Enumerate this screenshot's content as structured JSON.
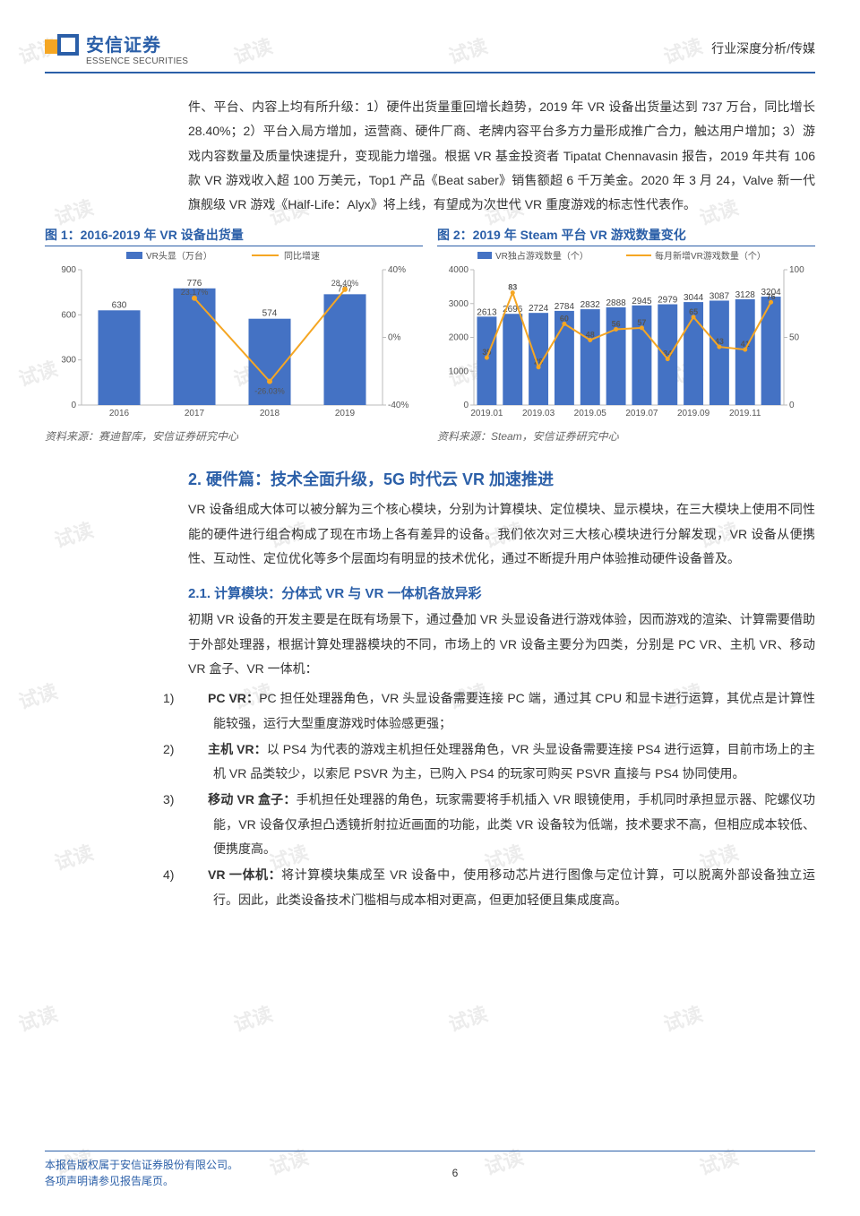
{
  "header": {
    "logo_cn": "安信证券",
    "logo_en": "ESSENCE SECURITIES",
    "doc_meta": "行业深度分析/传媒"
  },
  "intro_paragraph": "件、平台、内容上均有所升级：1）硬件出货量重回增长趋势，2019 年 VR 设备出货量达到 737 万台，同比增长 28.40%；2）平台入局方增加，运营商、硬件厂商、老牌内容平台多方力量形成推广合力，触达用户增加；3）游戏内容数量及质量快速提升，变现能力增强。根据 VR 基金投资者 Tipatat Chennavasin 报告，2019 年共有 106 款 VR 游戏收入超 100 万美元，Top1 产品《Beat saber》销售额超 6 千万美金。2020 年 3 月 24，Valve 新一代旗舰级 VR 游戏《Half-Life：Alyx》将上线，有望成为次世代 VR 重度游戏的标志性代表作。",
  "chart1": {
    "title": "图 1：2016-2019 年 VR 设备出货量",
    "legend_bar": "VR头显（万台）",
    "legend_line": "同比增速",
    "years": [
      "2016",
      "2017",
      "2018",
      "2019"
    ],
    "bars": [
      630,
      776,
      574,
      737
    ],
    "growth_pct": [
      null,
      23.17,
      -26.03,
      28.4
    ],
    "growth_labels": [
      "",
      "23.17%",
      "-26.03%",
      "28.40%"
    ],
    "bar_color": "#4472c4",
    "line_color": "#f5a623",
    "y_left": {
      "min": 0,
      "max": 900,
      "ticks": [
        0,
        300,
        600,
        900
      ]
    },
    "y_right": {
      "min": -40,
      "max": 40,
      "ticks": [
        -40,
        0,
        40
      ],
      "tick_labels": [
        "-40%",
        "0%",
        "40%"
      ]
    },
    "source": "资料来源：赛迪智库，安信证券研究中心"
  },
  "chart2": {
    "title": "图 2：2019 年 Steam 平台 VR 游戏数量变化",
    "legend_bar": "VR独占游戏数量（个）",
    "legend_line": "每月新增VR游戏数量（个）",
    "months": [
      "2019.01",
      "2019.02",
      "2019.03",
      "2019.04",
      "2019.05",
      "2019.06",
      "2019.07",
      "2019.08",
      "2019.09",
      "2019.10",
      "2019.11",
      "2019.12"
    ],
    "month_ticks": [
      "2019.01",
      "2019.03",
      "2019.05",
      "2019.07",
      "2019.09",
      "2019.11"
    ],
    "bars": [
      2613,
      2696,
      2724,
      2784,
      2832,
      2888,
      2945,
      2979,
      3044,
      3087,
      3128,
      3204
    ],
    "line": [
      35,
      83,
      28,
      60,
      48,
      56,
      57,
      34,
      65,
      43,
      41,
      76
    ],
    "bar_color": "#4472c4",
    "line_color": "#f5a623",
    "y_left": {
      "min": 0,
      "max": 4000,
      "ticks": [
        0,
        1000,
        2000,
        3000,
        4000
      ]
    },
    "y_right": {
      "min": 0,
      "max": 100,
      "ticks": [
        0,
        50,
        100
      ]
    },
    "source": "资料来源：Steam，安信证券研究中心"
  },
  "section2_title": "2. 硬件篇：技术全面升级，5G 时代云 VR 加速推进",
  "section2_para": "VR 设备组成大体可以被分解为三个核心模块，分别为计算模块、定位模块、显示模块，在三大模块上使用不同性能的硬件进行组合构成了现在市场上各有差异的设备。我们依次对三大核心模块进行分解发现，VR 设备从便携性、互动性、定位优化等多个层面均有明显的技术优化，通过不断提升用户体验推动硬件设备普及。",
  "section21_title": "2.1. 计算模块：分体式 VR 与 VR 一体机各放异彩",
  "section21_para": "初期 VR 设备的开发主要是在既有场景下，通过叠加 VR 头显设备进行游戏体验，因而游戏的渲染、计算需要借助于外部处理器，根据计算处理器模块的不同，市场上的 VR 设备主要分为四类，分别是 PC VR、主机 VR、移动 VR 盒子、VR 一体机：",
  "list_items": [
    {
      "label": "1)",
      "bold": "PC VR：",
      "text": "PC 担任处理器角色，VR 头显设备需要连接 PC 端，通过其 CPU 和显卡进行运算，其优点是计算性能较强，运行大型重度游戏时体验感更强；"
    },
    {
      "label": "2)",
      "bold": "主机 VR：",
      "text": "以 PS4 为代表的游戏主机担任处理器角色，VR 头显设备需要连接 PS4 进行运算，目前市场上的主机 VR 品类较少，以索尼 PSVR 为主，已购入 PS4 的玩家可购买 PSVR 直接与 PS4 协同使用。"
    },
    {
      "label": "3)",
      "bold": "移动 VR 盒子：",
      "text": "手机担任处理器的角色，玩家需要将手机插入 VR 眼镜使用，手机同时承担显示器、陀螺仪功能，VR 设备仅承担凸透镜折射拉近画面的功能，此类 VR 设备较为低端，技术要求不高，但相应成本较低、便携度高。"
    },
    {
      "label": "4)",
      "bold": "VR 一体机：",
      "text": "将计算模块集成至 VR 设备中，使用移动芯片进行图像与定位计算，可以脱离外部设备独立运行。因此，此类设备技术门槛相与成本相对更高，但更加轻便且集成度高。"
    }
  ],
  "footer": {
    "left1": "本报告版权属于安信证券股份有限公司。",
    "left2": "各项声明请参见报告尾页。",
    "page": "6"
  },
  "watermark": "试读"
}
